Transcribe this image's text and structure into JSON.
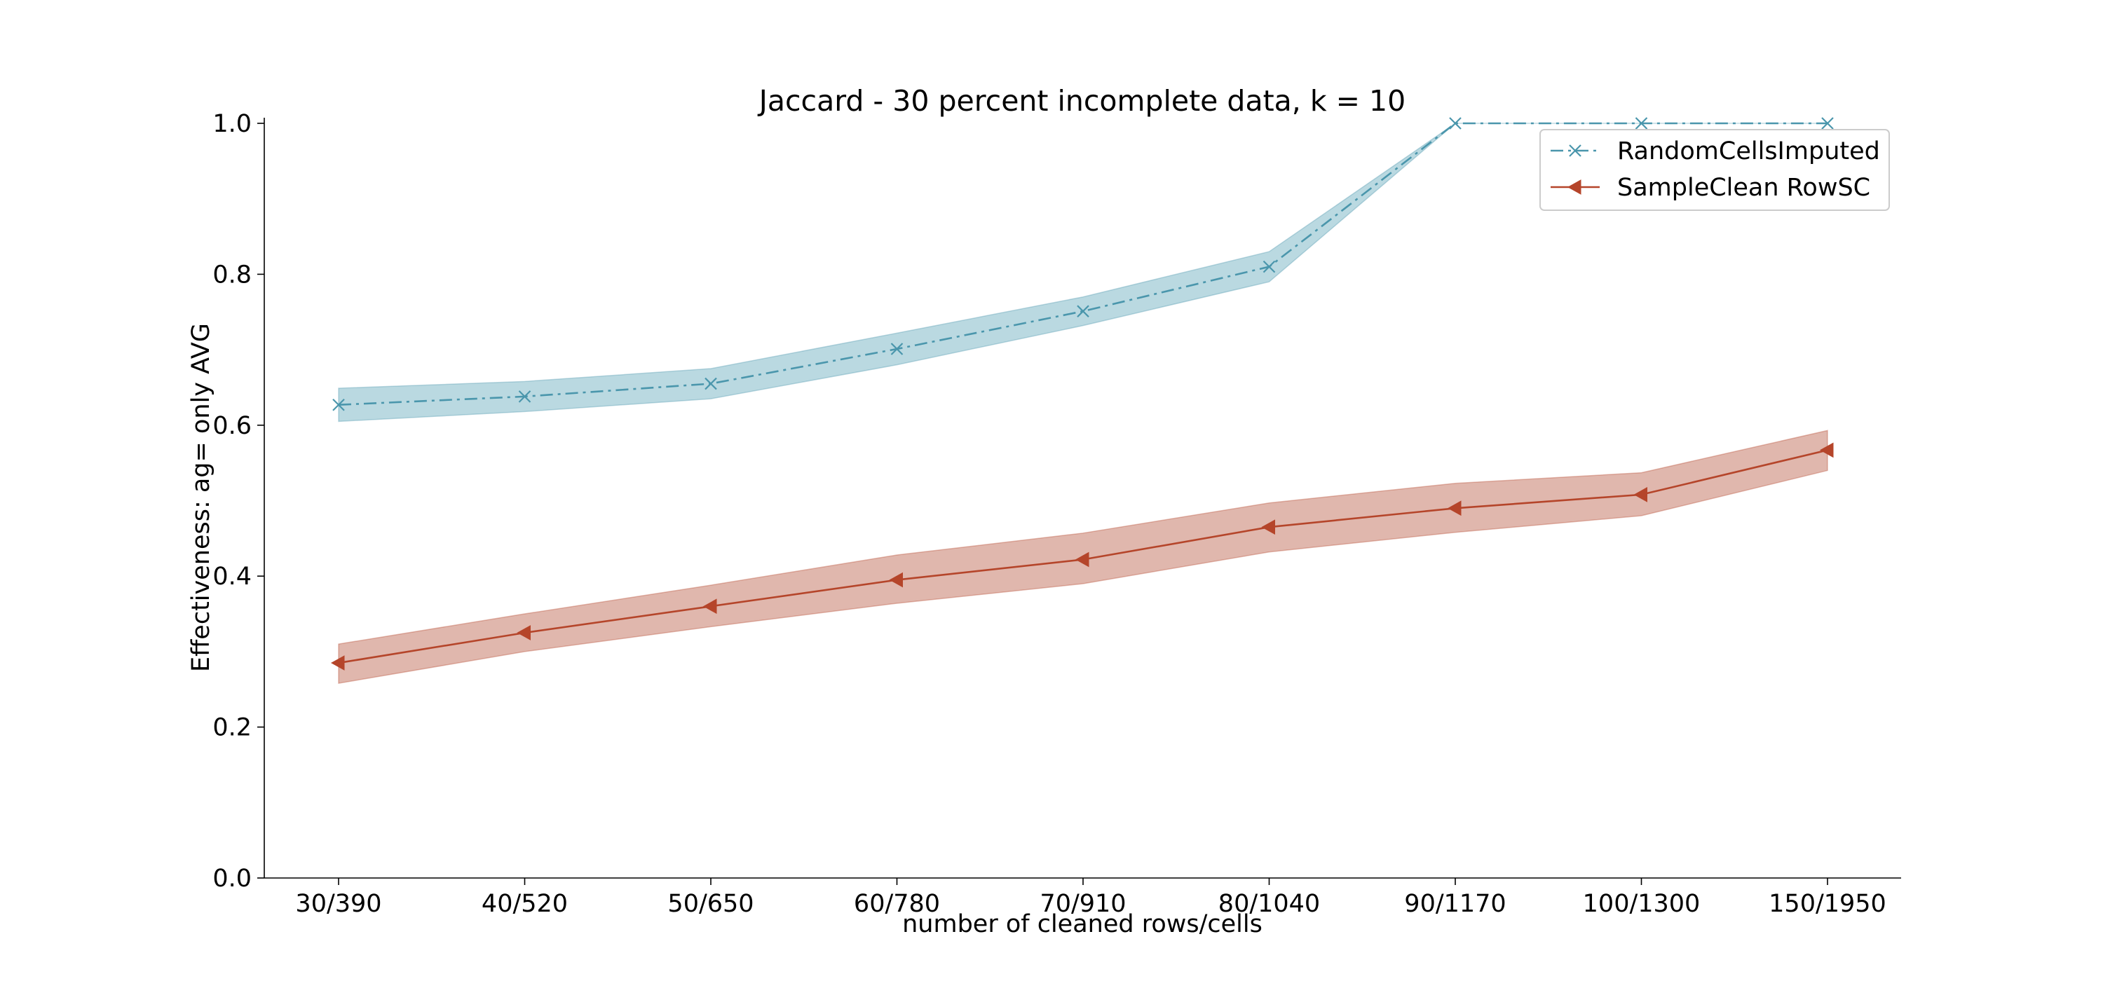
{
  "chart_data": {
    "type": "line",
    "title": "Jaccard - 30 percent incomplete data, k = 10",
    "xlabel": "number of cleaned rows/cells",
    "ylabel": "Effectiveness: ag= only AVG",
    "categories": [
      "30/390",
      "40/520",
      "50/650",
      "60/780",
      "70/910",
      "80/1040",
      "90/1170",
      "100/1300",
      "150/1950"
    ],
    "ylim": [
      0.0,
      1.0
    ],
    "yticks": [
      "0.0",
      "0.2",
      "0.4",
      "0.6",
      "0.8",
      "1.0"
    ],
    "grid": false,
    "legend_position": "top-right",
    "series": [
      {
        "name": "RandomCellsImputed",
        "color": "#4a96ac",
        "band_color": "#8fc2ce",
        "linestyle": "dash-dot",
        "marker": "x",
        "values": [
          0.627,
          0.638,
          0.655,
          0.701,
          0.751,
          0.81,
          1.0,
          1.0,
          1.0
        ],
        "lower": [
          0.605,
          0.618,
          0.635,
          0.68,
          0.732,
          0.79,
          1.0,
          1.0,
          1.0
        ],
        "upper": [
          0.649,
          0.658,
          0.675,
          0.722,
          0.77,
          0.83,
          1.0,
          1.0,
          1.0
        ]
      },
      {
        "name": "SampleClean RowSC",
        "color": "#b5452a",
        "band_color": "#cd8b7a",
        "linestyle": "solid",
        "marker": "triangle-left",
        "values": [
          0.285,
          0.325,
          0.36,
          0.395,
          0.422,
          0.465,
          0.49,
          0.508,
          0.567
        ],
        "lower": [
          0.258,
          0.3,
          0.333,
          0.364,
          0.39,
          0.432,
          0.458,
          0.48,
          0.54
        ],
        "upper": [
          0.31,
          0.35,
          0.388,
          0.428,
          0.457,
          0.497,
          0.523,
          0.537,
          0.593
        ]
      }
    ]
  }
}
